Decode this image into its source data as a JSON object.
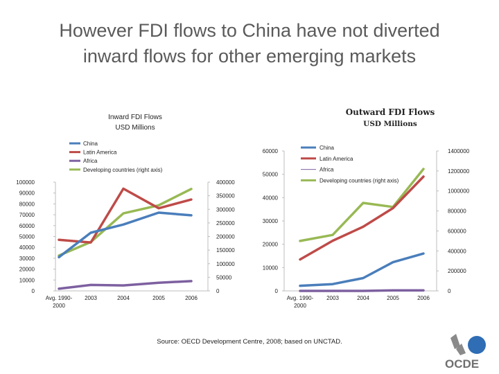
{
  "slide": {
    "title_line1": "However FDI flows to China have not diverted",
    "title_line2": "inward flows for other emerging markets",
    "source": "Source:  OECD Development Centre, 2008; based on  UNCTAD.",
    "logo_text": "OCDE"
  },
  "colors": {
    "china": "#4a7ebb",
    "latin_america": "#be4b48",
    "africa": "#7d60a0",
    "developing": "#98b954"
  },
  "chart_data": [
    {
      "type": "line",
      "title": "Inward FDI Flows",
      "subtitle": "USD Millions",
      "categories": [
        "Avg. 1990-2000",
        "2003",
        "2004",
        "2005",
        "2006"
      ],
      "category_labels": [
        [
          "Avg. 1990-",
          "2000"
        ],
        [
          "2003"
        ],
        [
          "2004"
        ],
        [
          "2005"
        ],
        [
          "2006"
        ]
      ],
      "ylim_left": [
        0,
        100000
      ],
      "yticks_left": [
        "0",
        "10000",
        "20000",
        "30000",
        "40000",
        "50000",
        "60000",
        "70000",
        "80000",
        "90000",
        "100000"
      ],
      "ylim_right": [
        0,
        400000
      ],
      "yticks_right": [
        "0",
        "50000",
        "100000",
        "150000",
        "200000",
        "250000",
        "300000",
        "350000",
        "400000"
      ],
      "legend": [
        "China",
        "Latin America",
        "Africa",
        "Developing countries (right axis)"
      ],
      "legend_position": "top",
      "series": [
        {
          "name": "China",
          "axis": "left",
          "color_key": "china",
          "values": [
            31000,
            53500,
            61000,
            72000,
            69500
          ]
        },
        {
          "name": "Latin America",
          "axis": "left",
          "color_key": "latin_america",
          "values": [
            47000,
            44500,
            94000,
            76000,
            84000
          ]
        },
        {
          "name": "Africa",
          "axis": "left",
          "color_key": "africa",
          "values": [
            2000,
            5500,
            5000,
            7500,
            9000
          ]
        },
        {
          "name": "Developing countries (right axis)",
          "axis": "right",
          "color_key": "developing",
          "values": [
            130000,
            180000,
            285000,
            315000,
            375000
          ]
        }
      ]
    },
    {
      "type": "line",
      "title": "Outward FDI Flows",
      "subtitle": "USD Millions",
      "categories": [
        "Avg. 1990-2000",
        "2003",
        "2004",
        "2005",
        "2006"
      ],
      "category_labels": [
        [
          "Avg. 1990-",
          "2000"
        ],
        [
          "2003"
        ],
        [
          "2004"
        ],
        [
          "2005"
        ],
        [
          "2006"
        ]
      ],
      "ylim_left": [
        0,
        60000
      ],
      "yticks_left": [
        "0",
        "10000",
        "20000",
        "30000",
        "40000",
        "50000",
        "60000"
      ],
      "ylim_right": [
        0,
        1400000
      ],
      "yticks_right": [
        "0",
        "200000",
        "400000",
        "600000",
        "800000",
        "1000000",
        "1200000",
        "1400000"
      ],
      "legend": [
        "China",
        "Latin America",
        "Africa",
        "Developing countries (right axis)"
      ],
      "legend_position": "top-right",
      "series": [
        {
          "name": "China",
          "axis": "left",
          "color_key": "china",
          "values": [
            2200,
            2900,
            5500,
            12300,
            16000
          ]
        },
        {
          "name": "Latin America",
          "axis": "left",
          "color_key": "latin_america",
          "values": [
            13500,
            21500,
            27500,
            35500,
            49000
          ]
        },
        {
          "name": "Africa",
          "axis": "left",
          "color_key": "africa",
          "values": [
            0,
            0,
            0,
            200,
            200
          ]
        },
        {
          "name": "Developing countries (right axis)",
          "axis": "right",
          "color_key": "developing",
          "values": [
            500000,
            560000,
            880000,
            840000,
            1220000
          ]
        }
      ]
    }
  ]
}
